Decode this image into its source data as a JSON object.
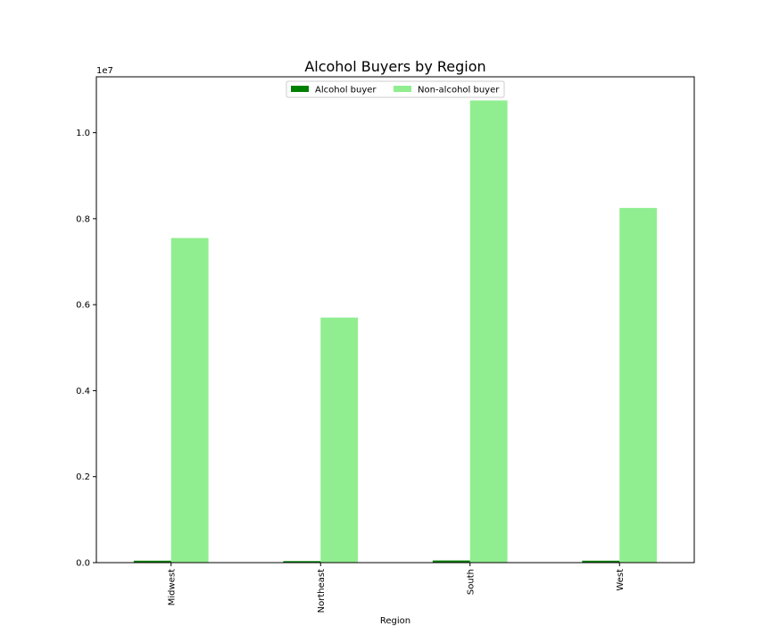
{
  "chart_data": {
    "type": "bar",
    "title": "Alcohol Buyers by Region",
    "xlabel": "Region",
    "ylabel": "",
    "y_offset_label": "1e7",
    "categories": [
      "Midwest",
      "Northeast",
      "South",
      "West"
    ],
    "series": [
      {
        "name": "Alcohol buyer",
        "color": "#008000",
        "values": [
          45000,
          35000,
          50000,
          45000
        ]
      },
      {
        "name": "Non-alcohol buyer",
        "color": "#90ee90",
        "values": [
          7550000,
          5700000,
          10750000,
          8250000
        ]
      }
    ],
    "ylim": [
      0,
      11300000
    ],
    "y_ticks": [
      0,
      2000000,
      4000000,
      6000000,
      8000000,
      10000000
    ],
    "y_tick_labels": [
      "0.0",
      "0.2",
      "0.4",
      "0.6",
      "0.8",
      "1.0"
    ],
    "legend": "top-center",
    "grid": false
  }
}
